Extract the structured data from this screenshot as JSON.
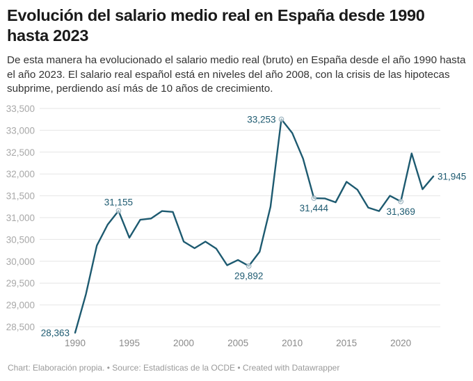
{
  "header": {
    "title": "Evolución del salario medio real en España desde 1990 hasta 2023",
    "subtitle": "De esta manera ha evolucionado el salario medio real (bruto) en España desde el año 1990 hasta el año 2023. El salario real español está en niveles del año 2008, con la crisis de las hipotecas subprime, perdiendo así más de 10 años de crecimiento."
  },
  "footer": {
    "chart_credit": "Chart: Elaboración propia.",
    "separator": " • ",
    "source": "Source: Estadísticas de la OCDE",
    "created_with": "Created with Datawrapper"
  },
  "colors": {
    "line": "#1d5a70",
    "grid": "#e6e6e6",
    "axis_text": "#a8a8a8",
    "marker_stroke": "#8fa9b6"
  },
  "chart_data": {
    "type": "line",
    "title": "Evolución del salario medio real en España desde 1990 hasta 2023",
    "xlabel": "",
    "ylabel": "",
    "x": [
      1990,
      1991,
      1992,
      1993,
      1994,
      1995,
      1996,
      1997,
      1998,
      1999,
      2000,
      2001,
      2002,
      2003,
      2004,
      2005,
      2006,
      2007,
      2008,
      2009,
      2010,
      2011,
      2012,
      2013,
      2014,
      2015,
      2016,
      2017,
      2018,
      2019,
      2020,
      2021,
      2022,
      2023
    ],
    "series": [
      {
        "name": "Salario medio real",
        "values": [
          28363,
          29250,
          30360,
          30840,
          31155,
          30540,
          30950,
          30980,
          31150,
          31130,
          30450,
          30300,
          30450,
          30290,
          29910,
          30030,
          29892,
          30220,
          31250,
          33253,
          32940,
          32350,
          31444,
          31440,
          31350,
          31820,
          31640,
          31230,
          31150,
          31500,
          31369,
          32470,
          31650,
          31945
        ]
      }
    ],
    "annotations": [
      {
        "x": 1990,
        "value": 28363,
        "label": "28,363",
        "marker": false,
        "position": "left"
      },
      {
        "x": 1994,
        "value": 31155,
        "label": "31,155",
        "marker": true,
        "position": "top"
      },
      {
        "x": 2006,
        "value": 29892,
        "label": "29,892",
        "marker": true,
        "position": "bottom"
      },
      {
        "x": 2009,
        "value": 33253,
        "label": "33,253",
        "marker": true,
        "position": "left"
      },
      {
        "x": 2012,
        "value": 31444,
        "label": "31,444",
        "marker": true,
        "position": "bottom"
      },
      {
        "x": 2020,
        "value": 31369,
        "label": "31,369",
        "marker": true,
        "position": "bottom"
      },
      {
        "x": 2023,
        "value": 31945,
        "label": "31,945",
        "marker": false,
        "position": "right"
      }
    ],
    "xticks": [
      1990,
      1995,
      2000,
      2005,
      2010,
      2015,
      2020
    ],
    "xtick_labels": [
      "1990",
      "1995",
      "2000",
      "2005",
      "2010",
      "2015",
      "2020"
    ],
    "yticks": [
      28500,
      29000,
      29500,
      30000,
      30500,
      31000,
      31500,
      32000,
      32500,
      33000,
      33500
    ],
    "ytick_labels": [
      "28,500",
      "29,000",
      "29,500",
      "30,000",
      "30,500",
      "31,000",
      "31,500",
      "32,000",
      "32,500",
      "33,000",
      "33,500"
    ],
    "xlim": [
      1990,
      2023
    ],
    "ylim": [
      28363,
      33500
    ],
    "grid": true,
    "legend": "none"
  }
}
